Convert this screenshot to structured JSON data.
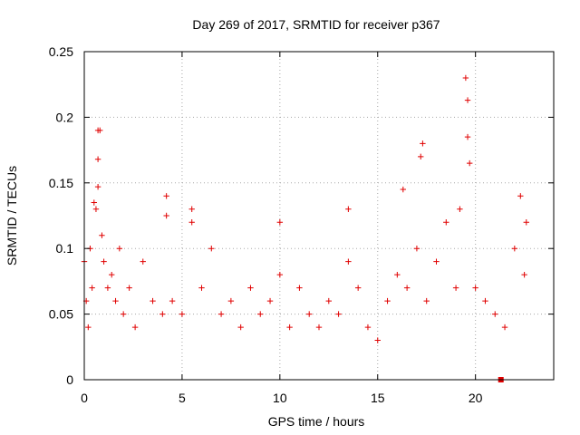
{
  "chart_data": {
    "type": "scatter",
    "title": "Day 269 of 2017, SRMTID for receiver p367",
    "xlabel": "GPS time / hours",
    "ylabel": "SRMTID / TECUs",
    "xlim": [
      0,
      24
    ],
    "ylim": [
      0,
      0.25
    ],
    "xticks": [
      "0",
      "5",
      "10",
      "15",
      "20"
    ],
    "xtick_values": [
      0,
      5,
      10,
      15,
      20
    ],
    "yticks": [
      "0",
      "0.05",
      "0.1",
      "0.15",
      "0.2",
      "0.25"
    ],
    "ytick_values": [
      0,
      0.05,
      0.1,
      0.15,
      0.2,
      0.25
    ],
    "grid": true,
    "series": [
      {
        "name": "SRMTID",
        "color": "#e00000",
        "marker": "plus",
        "sampled_points": [
          [
            0.0,
            0.09
          ],
          [
            0.1,
            0.06
          ],
          [
            0.2,
            0.04
          ],
          [
            0.3,
            0.1
          ],
          [
            0.4,
            0.07
          ],
          [
            0.5,
            0.135
          ],
          [
            0.6,
            0.13
          ],
          [
            0.7,
            0.19
          ],
          [
            0.7,
            0.147
          ],
          [
            0.7,
            0.168
          ],
          [
            0.8,
            0.19
          ],
          [
            0.9,
            0.11
          ],
          [
            1.0,
            0.09
          ],
          [
            1.2,
            0.07
          ],
          [
            1.4,
            0.08
          ],
          [
            1.6,
            0.06
          ],
          [
            1.8,
            0.1
          ],
          [
            2.0,
            0.05
          ],
          [
            2.3,
            0.07
          ],
          [
            2.6,
            0.04
          ],
          [
            3.0,
            0.09
          ],
          [
            3.5,
            0.06
          ],
          [
            4.0,
            0.05
          ],
          [
            4.2,
            0.14
          ],
          [
            4.2,
            0.125
          ],
          [
            4.5,
            0.06
          ],
          [
            5.0,
            0.05
          ],
          [
            5.5,
            0.13
          ],
          [
            5.5,
            0.12
          ],
          [
            6.0,
            0.07
          ],
          [
            6.5,
            0.1
          ],
          [
            7.0,
            0.05
          ],
          [
            7.5,
            0.06
          ],
          [
            8.0,
            0.04
          ],
          [
            8.5,
            0.07
          ],
          [
            9.0,
            0.05
          ],
          [
            9.5,
            0.06
          ],
          [
            10.0,
            0.12
          ],
          [
            10.0,
            0.08
          ],
          [
            10.5,
            0.04
          ],
          [
            11.0,
            0.07
          ],
          [
            11.5,
            0.05
          ],
          [
            12.0,
            0.04
          ],
          [
            12.5,
            0.06
          ],
          [
            13.0,
            0.05
          ],
          [
            13.5,
            0.13
          ],
          [
            13.5,
            0.09
          ],
          [
            14.0,
            0.07
          ],
          [
            14.5,
            0.04
          ],
          [
            15.0,
            0.03
          ],
          [
            15.5,
            0.06
          ],
          [
            16.0,
            0.08
          ],
          [
            16.3,
            0.145
          ],
          [
            16.5,
            0.07
          ],
          [
            17.0,
            0.1
          ],
          [
            17.2,
            0.17
          ],
          [
            17.3,
            0.18
          ],
          [
            17.5,
            0.06
          ],
          [
            18.0,
            0.09
          ],
          [
            18.5,
            0.12
          ],
          [
            19.0,
            0.07
          ],
          [
            19.2,
            0.13
          ],
          [
            19.5,
            0.23
          ],
          [
            19.6,
            0.213
          ],
          [
            19.6,
            0.185
          ],
          [
            19.7,
            0.165
          ],
          [
            20.0,
            0.07
          ],
          [
            20.5,
            0.06
          ],
          [
            21.0,
            0.05
          ],
          [
            21.5,
            0.04
          ],
          [
            22.0,
            0.1
          ],
          [
            22.3,
            0.14
          ],
          [
            22.5,
            0.08
          ],
          [
            22.6,
            0.12
          ]
        ]
      }
    ],
    "outlier_marker": {
      "x": 21.3,
      "y": 0,
      "shape": "filled-square"
    }
  }
}
